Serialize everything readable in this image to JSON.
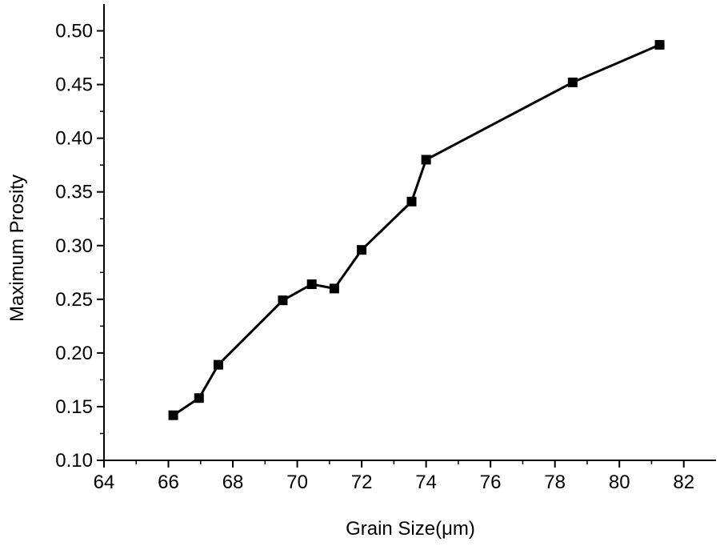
{
  "chart_data": {
    "type": "line",
    "title": "",
    "xlabel": "Grain Size(μm)",
    "ylabel": "Maximum Prosity",
    "xlim": [
      64,
      83
    ],
    "ylim": [
      0.1,
      0.525
    ],
    "x_ticks": [
      64,
      66,
      68,
      70,
      72,
      74,
      76,
      78,
      80,
      82
    ],
    "x_tick_labels": [
      "64",
      "66",
      "68",
      "70",
      "72",
      "74",
      "76",
      "78",
      "80",
      "82"
    ],
    "y_ticks": [
      0.1,
      0.15,
      0.2,
      0.25,
      0.3,
      0.35,
      0.4,
      0.45,
      0.5
    ],
    "y_tick_labels": [
      "0.10",
      "0.15",
      "0.20",
      "0.25",
      "0.30",
      "0.35",
      "0.40",
      "0.45",
      "0.50"
    ],
    "grid": false,
    "legend": "none",
    "marker": "square",
    "line_color": "#000000",
    "series": [
      {
        "x": [
          66.15,
          66.95,
          67.55,
          69.55,
          70.45,
          71.15,
          72.0,
          73.55,
          74.0,
          78.55,
          81.25
        ],
        "y": [
          0.142,
          0.158,
          0.189,
          0.249,
          0.264,
          0.26,
          0.296,
          0.341,
          0.38,
          0.452,
          0.487
        ]
      }
    ]
  }
}
